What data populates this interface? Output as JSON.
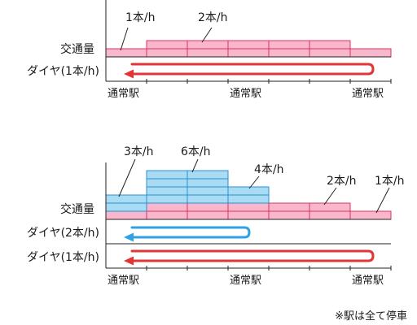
{
  "diagram1": {
    "rate_labels": [
      "1本/h",
      "2本/h"
    ],
    "traffic_label": "交通量",
    "diagram_label": "ダイヤ(1本/h)",
    "stations": [
      "通常駅",
      "通常駅",
      "通常駅"
    ]
  },
  "diagram2": {
    "rate_labels": [
      "3本/h",
      "6本/h",
      "4本/h",
      "2本/h",
      "1本/h"
    ],
    "traffic_label": "交通量",
    "diagram_labels": [
      "ダイヤ(2本/h)",
      "ダイヤ(1本/h)"
    ],
    "stations": [
      "通常駅",
      "通常駅",
      "通常駅"
    ]
  },
  "note": "※駅は全て停車",
  "colors": {
    "pink_fill": "#f9b7ce",
    "pink_stroke": "#e0305a",
    "blue_fill": "#a9dcf3",
    "blue_stroke": "#2b8fd0",
    "red_loop": "#e23535",
    "blue_loop": "#2ea3e0"
  }
}
